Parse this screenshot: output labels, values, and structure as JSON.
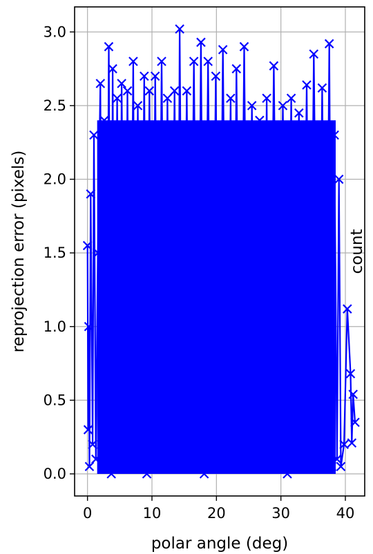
{
  "chart_data": {
    "type": "line",
    "marker": "x",
    "xlabel": "polar angle (deg)",
    "ylabel": "reprojection error (pixels)",
    "right_label": "count",
    "xlim": [
      -2,
      43
    ],
    "ylim": [
      -0.15,
      3.17
    ],
    "x_ticks": [
      0,
      10,
      20,
      30,
      40
    ],
    "x_tick_labels": [
      "0",
      "10",
      "20",
      "30",
      "40"
    ],
    "y_ticks": [
      0.0,
      0.5,
      1.0,
      1.5,
      2.0,
      2.5,
      3.0
    ],
    "y_tick_labels": [
      "0.0",
      "0.5",
      "1.0",
      "1.5",
      "2.0",
      "2.5",
      "3.0"
    ],
    "grid": true,
    "series_color": "#0000ff",
    "dense_region": {
      "x_range": [
        1.5,
        38.5
      ],
      "y_range": [
        0.0,
        2.4
      ]
    },
    "series": [
      {
        "x": [
          0.0,
          0.1,
          0.2,
          0.3,
          0.5,
          0.8,
          1.0,
          1.3,
          1.6,
          2.0,
          2.3,
          2.6,
          3.0,
          3.3,
          3.7,
          3.9,
          4.2,
          4.6,
          5.0,
          5.3,
          5.8,
          6.2,
          6.6,
          7.1,
          7.4,
          7.8,
          8.3,
          8.8,
          9.2,
          9.6,
          10.1,
          10.5,
          11.0,
          11.5,
          12.0,
          12.4,
          12.9,
          13.5,
          14.0,
          14.3,
          14.8,
          15.4,
          15.9,
          16.5,
          17.1,
          17.6,
          18.1,
          18.7,
          19.3,
          19.9,
          20.4,
          21.0,
          21.6,
          22.2,
          22.6,
          23.1,
          23.7,
          24.3,
          24.9,
          25.5,
          26.1,
          26.7,
          27.3,
          27.8,
          28.2,
          28.9,
          29.6,
          30.3,
          31.0,
          31.6,
          32.1,
          32.8,
          33.4,
          34.0,
          34.5,
          35.1,
          35.8,
          36.4,
          37.0,
          37.5,
          37.9,
          38.3,
          38.7,
          39.0,
          39.3,
          39.8,
          40.3,
          40.8,
          41.0,
          41.2,
          41.5
        ],
        "y": [
          1.55,
          0.3,
          1.0,
          0.05,
          1.9,
          0.2,
          2.3,
          0.1,
          1.5,
          2.65,
          0.05,
          2.4,
          0.3,
          2.9,
          0.0,
          2.75,
          0.15,
          2.55,
          0.05,
          2.65,
          0.1,
          2.6,
          0.2,
          2.8,
          0.05,
          2.5,
          0.1,
          2.7,
          0.0,
          2.6,
          0.05,
          2.7,
          0.1,
          2.8,
          0.15,
          2.55,
          0.05,
          2.6,
          0.1,
          3.02,
          0.05,
          2.6,
          0.1,
          2.8,
          0.05,
          2.93,
          0.0,
          2.8,
          0.1,
          2.7,
          0.05,
          2.88,
          0.1,
          2.55,
          0.05,
          2.75,
          0.1,
          2.9,
          0.05,
          2.5,
          0.1,
          2.4,
          0.05,
          2.55,
          0.1,
          2.77,
          0.05,
          2.5,
          0.0,
          2.55,
          0.1,
          2.45,
          0.05,
          2.64,
          0.1,
          2.85,
          0.05,
          2.62,
          0.1,
          2.92,
          0.05,
          2.3,
          0.1,
          2.0,
          0.05,
          0.2,
          1.12,
          0.68,
          0.21,
          0.54,
          0.35
        ]
      }
    ]
  }
}
